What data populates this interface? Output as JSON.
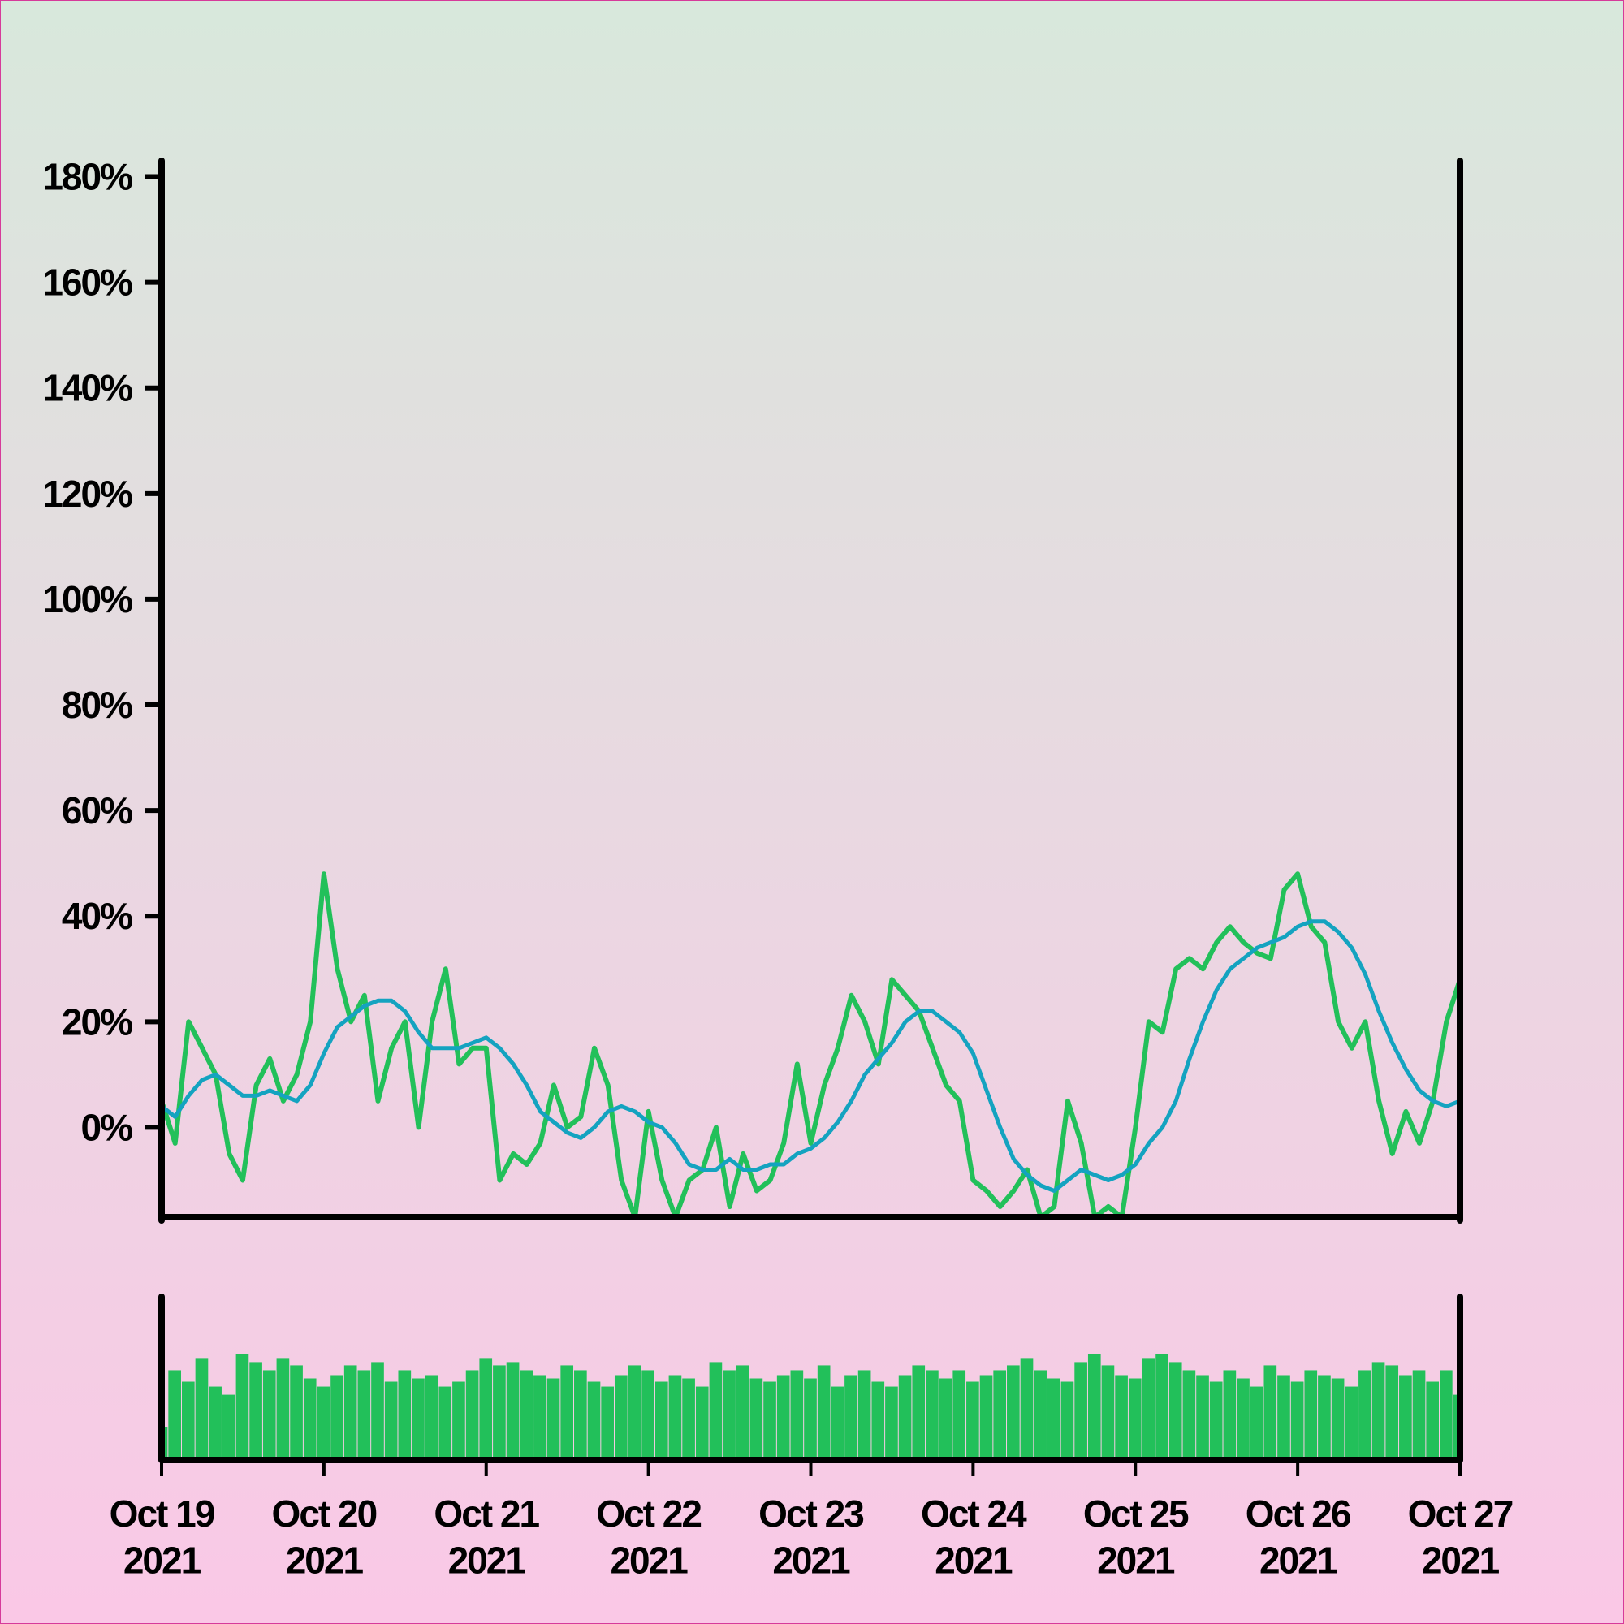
{
  "chart_data": [
    {
      "type": "line",
      "x": [
        0,
        2,
        4,
        6,
        8,
        10,
        12,
        14,
        16,
        18,
        20,
        22,
        24,
        26,
        28,
        30,
        32,
        34,
        36,
        38,
        40,
        42,
        44,
        46,
        48,
        50,
        52,
        54,
        56,
        58,
        60,
        62,
        64,
        66,
        68,
        70,
        72,
        74,
        76,
        78,
        80,
        82,
        84,
        86,
        88,
        90,
        92,
        94,
        96,
        98,
        100,
        102,
        104,
        106,
        108,
        110,
        112,
        114,
        116,
        118,
        120,
        122,
        124,
        126,
        128,
        130,
        132,
        134,
        136,
        138,
        140,
        142,
        144,
        146,
        148,
        150,
        152,
        154,
        156,
        158,
        160,
        162,
        164,
        166,
        168,
        170,
        172,
        174,
        176,
        178,
        180,
        182,
        184,
        186,
        188,
        190,
        192
      ],
      "series": [
        {
          "color": "#22c05a",
          "values": [
            5,
            -3,
            20,
            15,
            10,
            -5,
            -10,
            8,
            13,
            5,
            10,
            20,
            48,
            30,
            20,
            25,
            5,
            15,
            20,
            0,
            20,
            30,
            12,
            15,
            15,
            -10,
            -5,
            -7,
            -3,
            8,
            0,
            2,
            15,
            8,
            -10,
            -17,
            3,
            -10,
            -17,
            -10,
            -8,
            0,
            -15,
            -5,
            -12,
            -10,
            -3,
            12,
            -3,
            8,
            15,
            25,
            20,
            12,
            28,
            25,
            22,
            15,
            8,
            5,
            -10,
            -12,
            -15,
            -12,
            -8,
            -17,
            -15,
            5,
            -3,
            -17,
            -15,
            -17,
            0,
            20,
            18,
            30,
            32,
            30,
            35,
            38,
            35,
            33,
            32,
            45,
            48,
            38,
            35,
            20,
            15,
            20,
            5,
            -5,
            3,
            -3,
            5,
            20,
            28
          ]
        },
        {
          "color": "#14a3c0",
          "values": [
            4,
            2,
            6,
            9,
            10,
            8,
            6,
            6,
            7,
            6,
            5,
            8,
            14,
            19,
            21,
            23,
            24,
            24,
            22,
            18,
            15,
            15,
            15,
            16,
            17,
            15,
            12,
            8,
            3,
            1,
            -1,
            -2,
            0,
            3,
            4,
            3,
            1,
            0,
            -3,
            -7,
            -8,
            -8,
            -6,
            -8,
            -8,
            -7,
            -7,
            -5,
            -4,
            -2,
            1,
            5,
            10,
            13,
            16,
            20,
            22,
            22,
            20,
            18,
            14,
            7,
            0,
            -6,
            -9,
            -11,
            -12,
            -10,
            -8,
            -9,
            -10,
            -9,
            -7,
            -3,
            0,
            5,
            13,
            20,
            26,
            30,
            32,
            34,
            35,
            36,
            38,
            39,
            39,
            37,
            34,
            29,
            22,
            16,
            11,
            7,
            5,
            4,
            5
          ]
        }
      ],
      "xlim": [
        0,
        192
      ],
      "ylim": [
        -17,
        183
      ],
      "yticks": [
        {
          "value": 0,
          "label": "0%"
        },
        {
          "value": 20,
          "label": "20%"
        },
        {
          "value": 40,
          "label": "40%"
        },
        {
          "value": 60,
          "label": "60%"
        },
        {
          "value": 80,
          "label": "80%"
        },
        {
          "value": 100,
          "label": "100%"
        },
        {
          "value": 120,
          "label": "120%"
        },
        {
          "value": 140,
          "label": "140%"
        },
        {
          "value": 160,
          "label": "160%"
        },
        {
          "value": 180,
          "label": "180%"
        }
      ]
    },
    {
      "type": "bar",
      "x": [
        0,
        2,
        4,
        6,
        8,
        10,
        12,
        14,
        16,
        18,
        20,
        22,
        24,
        26,
        28,
        30,
        32,
        34,
        36,
        38,
        40,
        42,
        44,
        46,
        48,
        50,
        52,
        54,
        56,
        58,
        60,
        62,
        64,
        66,
        68,
        70,
        72,
        74,
        76,
        78,
        80,
        82,
        84,
        86,
        88,
        90,
        92,
        94,
        96,
        98,
        100,
        102,
        104,
        106,
        108,
        110,
        112,
        114,
        116,
        118,
        120,
        122,
        124,
        126,
        128,
        130,
        132,
        134,
        136,
        138,
        140,
        142,
        144,
        146,
        148,
        150,
        152,
        154,
        156,
        158,
        160,
        162,
        164,
        166,
        168,
        170,
        172,
        174,
        176,
        178,
        180,
        182,
        184,
        186,
        188,
        190,
        192
      ],
      "values": [
        20,
        55,
        48,
        62,
        45,
        40,
        65,
        60,
        55,
        62,
        58,
        50,
        45,
        52,
        58,
        55,
        60,
        48,
        55,
        50,
        52,
        45,
        48,
        55,
        62,
        58,
        60,
        55,
        52,
        50,
        58,
        55,
        48,
        45,
        52,
        58,
        55,
        48,
        52,
        50,
        45,
        60,
        55,
        58,
        50,
        48,
        52,
        55,
        50,
        58,
        45,
        52,
        55,
        48,
        45,
        52,
        58,
        55,
        50,
        55,
        48,
        52,
        55,
        58,
        62,
        55,
        50,
        48,
        60,
        65,
        58,
        52,
        50,
        62,
        65,
        60,
        55,
        52,
        48,
        55,
        50,
        45,
        58,
        52,
        48,
        55,
        52,
        50,
        45,
        55,
        60,
        58,
        52,
        55,
        48,
        55,
        40
      ],
      "color": "#22c05a",
      "xlim": [
        0,
        192
      ],
      "ylim": [
        0,
        100
      ],
      "xticks": [
        {
          "value": 0,
          "label": "Oct 19\n2021"
        },
        {
          "value": 24,
          "label": "Oct 20\n2021"
        },
        {
          "value": 48,
          "label": "Oct 21\n2021"
        },
        {
          "value": 72,
          "label": "Oct 22\n2021"
        },
        {
          "value": 96,
          "label": "Oct 23\n2021"
        },
        {
          "value": 120,
          "label": "Oct 24\n2021"
        },
        {
          "value": 144,
          "label": "Oct 25\n2021"
        },
        {
          "value": 168,
          "label": "Oct 26\n2021"
        },
        {
          "value": 192,
          "label": "Oct 27\n2021"
        }
      ]
    }
  ]
}
